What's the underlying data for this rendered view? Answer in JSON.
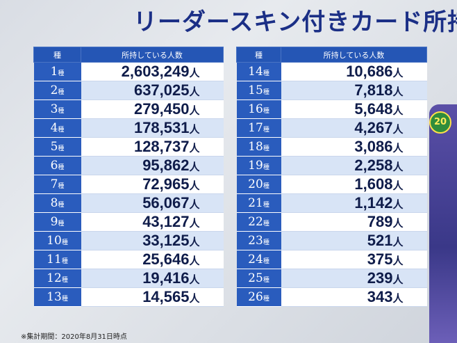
{
  "title": "リーダースキン付きカード所持",
  "headers": {
    "rank": "種",
    "count": "所持している人数"
  },
  "unit": "人",
  "rank_suffix": "種",
  "left_rows": [
    {
      "rank": "1",
      "count": "2,603,249"
    },
    {
      "rank": "2",
      "count": "637,025"
    },
    {
      "rank": "3",
      "count": "279,450"
    },
    {
      "rank": "4",
      "count": "178,531"
    },
    {
      "rank": "5",
      "count": "128,737"
    },
    {
      "rank": "6",
      "count": "95,862"
    },
    {
      "rank": "7",
      "count": "72,965"
    },
    {
      "rank": "8",
      "count": "56,067"
    },
    {
      "rank": "9",
      "count": "43,127"
    },
    {
      "rank": "10",
      "count": "33,125"
    },
    {
      "rank": "11",
      "count": "25,646"
    },
    {
      "rank": "12",
      "count": "19,416"
    },
    {
      "rank": "13",
      "count": "14,565"
    }
  ],
  "right_rows": [
    {
      "rank": "14",
      "count": "10,686"
    },
    {
      "rank": "15",
      "count": "7,818"
    },
    {
      "rank": "16",
      "count": "5,648"
    },
    {
      "rank": "17",
      "count": "4,267"
    },
    {
      "rank": "18",
      "count": "3,086"
    },
    {
      "rank": "19",
      "count": "2,258"
    },
    {
      "rank": "20",
      "count": "1,608"
    },
    {
      "rank": "21",
      "count": "1,142"
    },
    {
      "rank": "22",
      "count": "789"
    },
    {
      "rank": "23",
      "count": "521"
    },
    {
      "rank": "24",
      "count": "375"
    },
    {
      "rank": "25",
      "count": "239"
    },
    {
      "rank": "26",
      "count": "343"
    }
  ],
  "footnote": "※集計期間：2020年8月31日時点",
  "edge_badge": "20"
}
